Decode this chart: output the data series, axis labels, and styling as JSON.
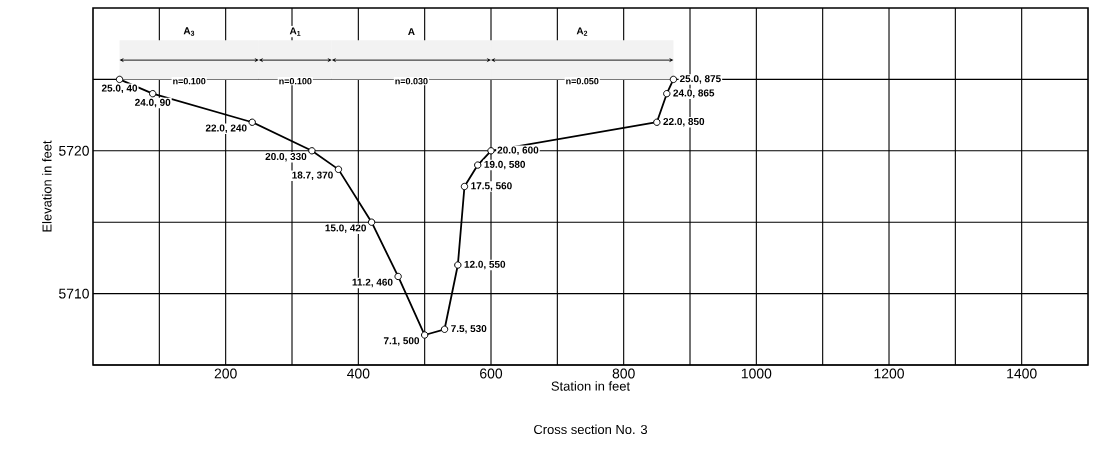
{
  "chart_data": {
    "type": "line",
    "title": "Cross section No. 3",
    "xlabel": "Station in feet",
    "ylabel": "Elevation in feet",
    "x": [
      40,
      90,
      240,
      330,
      370,
      420,
      460,
      500,
      530,
      550,
      560,
      580,
      600,
      850,
      865,
      875
    ],
    "values": [
      5725.0,
      5724.0,
      5722.0,
      5720.0,
      5718.7,
      5715.0,
      5711.2,
      5707.1,
      5707.5,
      5712.0,
      5717.5,
      5719.0,
      5720.0,
      5722.0,
      5724.0,
      5725.0
    ],
    "color": "#000000",
    "marker": "circle",
    "line_style": "solid",
    "grid": true,
    "xlim": [
      0,
      1500
    ],
    "ylim": [
      5705,
      5730
    ],
    "xticks": [
      {
        "value": 100,
        "label": null
      },
      200,
      {
        "value": 300,
        "label": null
      },
      400,
      {
        "value": 500,
        "label": null
      },
      600,
      {
        "value": 700,
        "label": null
      },
      800,
      {
        "value": 900,
        "label": null
      },
      1000,
      {
        "value": 1100,
        "label": null
      },
      1200,
      {
        "value": 1300,
        "label": null
      },
      1400
    ],
    "yticks": [
      {
        "value": 5705,
        "label": null
      },
      5710,
      {
        "value": 5715,
        "label": null
      },
      5720,
      {
        "value": 5725,
        "label": null
      }
    ],
    "bands": [
      {
        "axis": "x",
        "from": 40,
        "to": 250,
        "label": "A$_{3}$",
        "color": "#f2f2f2"
      },
      {
        "axis": "x",
        "from": 250,
        "to": 360,
        "label": "A$_{1}$",
        "color": "#f2f2f2"
      },
      {
        "axis": "x",
        "from": 360,
        "to": 600,
        "label": "A",
        "color": "#f2f2f2"
      },
      {
        "axis": "x",
        "from": 600,
        "to": 875,
        "label": "A$_{2}$",
        "color": "#f2f2f2"
      }
    ],
    "annotations": [
      "n=0.100",
      "n=0.100",
      "n=0.030",
      "n=0.050",
      {
        "text": "25.0, 40",
        "x": 40,
        "y": 5725.0
      },
      {
        "text": "24.0, 90",
        "x": 90,
        "y": 5724.0
      },
      {
        "text": "22.0, 240",
        "x": 240,
        "y": 5722.0
      },
      {
        "text": "20.0, 330",
        "x": 330,
        "y": 5720.0
      },
      {
        "text": "18.7, 370",
        "x": 370,
        "y": 5718.7
      },
      {
        "text": "15.0, 420",
        "x": 420,
        "y": 5715.0
      },
      {
        "text": "11.2, 460",
        "x": 460,
        "y": 5711.2
      },
      {
        "text": "7.1, 500",
        "x": 500,
        "y": 5707.1
      },
      {
        "text": "7.5, 530",
        "x": 530,
        "y": 5707.5
      },
      {
        "text": "12.0, 550",
        "x": 550,
        "y": 5712.0
      },
      {
        "text": "17.5, 560",
        "x": 560,
        "y": 5717.5
      },
      {
        "text": "19.0, 580",
        "x": 580,
        "y": 5719.0
      },
      {
        "text": "20.0, 600",
        "x": 600,
        "y": 5720.0
      },
      {
        "text": "22.0, 850",
        "x": 850,
        "y": 5722.0
      },
      {
        "text": "24.0, 865",
        "x": 865,
        "y": 5724.0
      },
      {
        "text": "25.0, 875",
        "x": 875,
        "y": 5725.0
      }
    ]
  }
}
